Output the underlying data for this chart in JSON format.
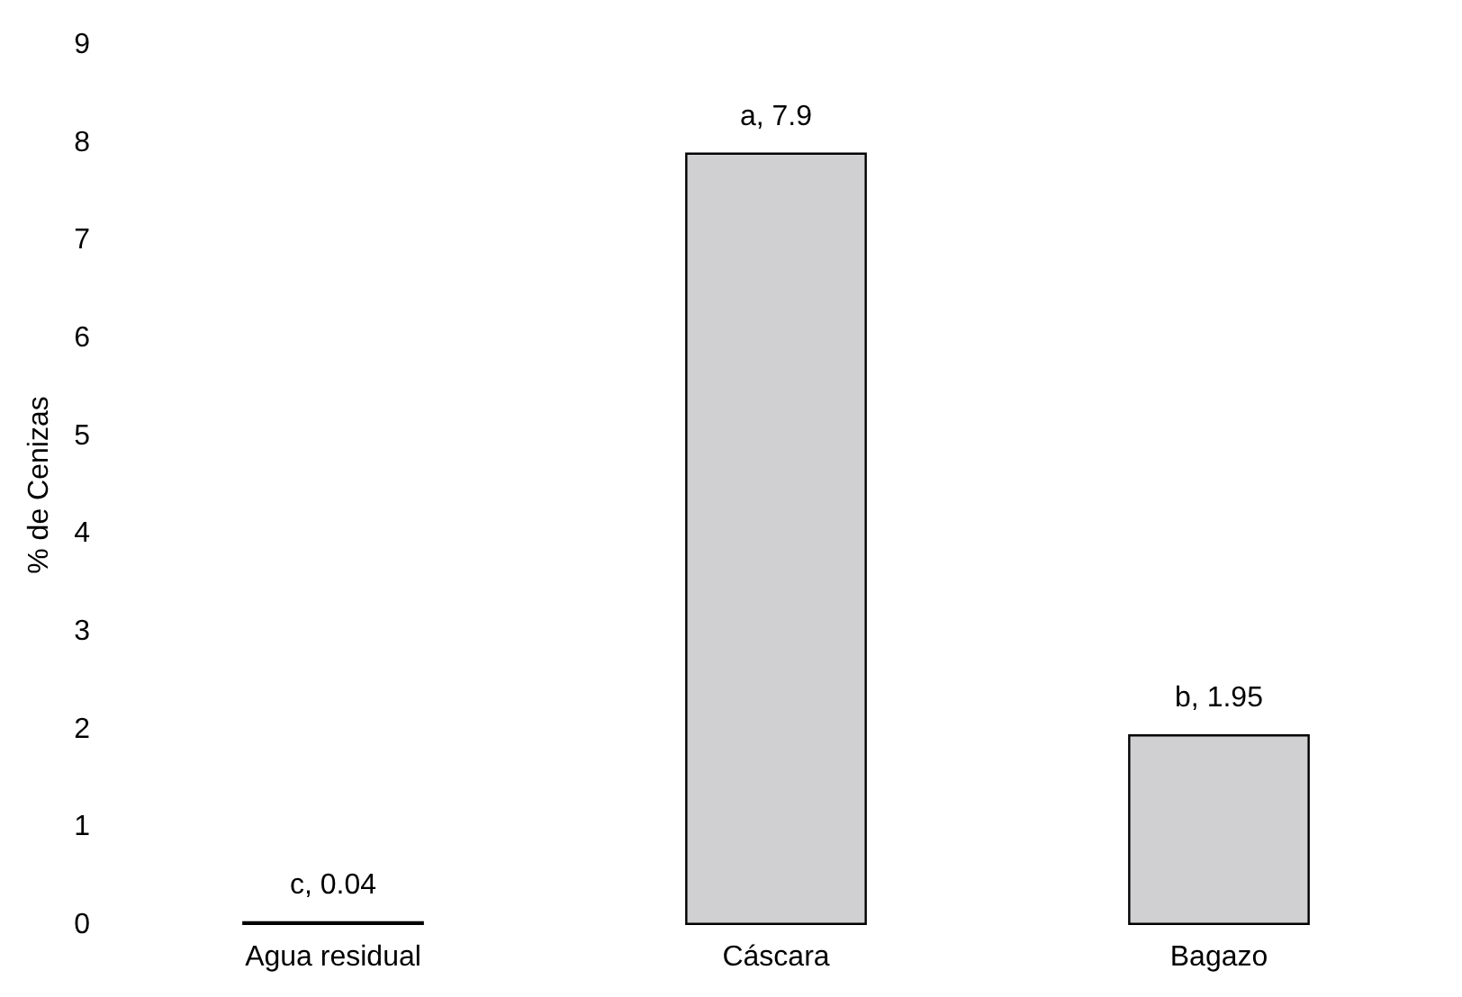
{
  "chart_data": {
    "type": "bar",
    "ylabel": "% de Cenizas",
    "categories": [
      "Agua residual",
      "Cáscara",
      "Bagazo"
    ],
    "values": [
      0.04,
      7.9,
      1.95
    ],
    "color": "#d0cfd1",
    "value_labels": [
      "c, 0.04",
      "a, 7.9",
      "b, 1.95"
    ],
    "ylim": [
      0,
      9
    ],
    "yticks": [
      0,
      1,
      2,
      3,
      4,
      5,
      6,
      7,
      8,
      9
    ],
    "grid": false
  }
}
